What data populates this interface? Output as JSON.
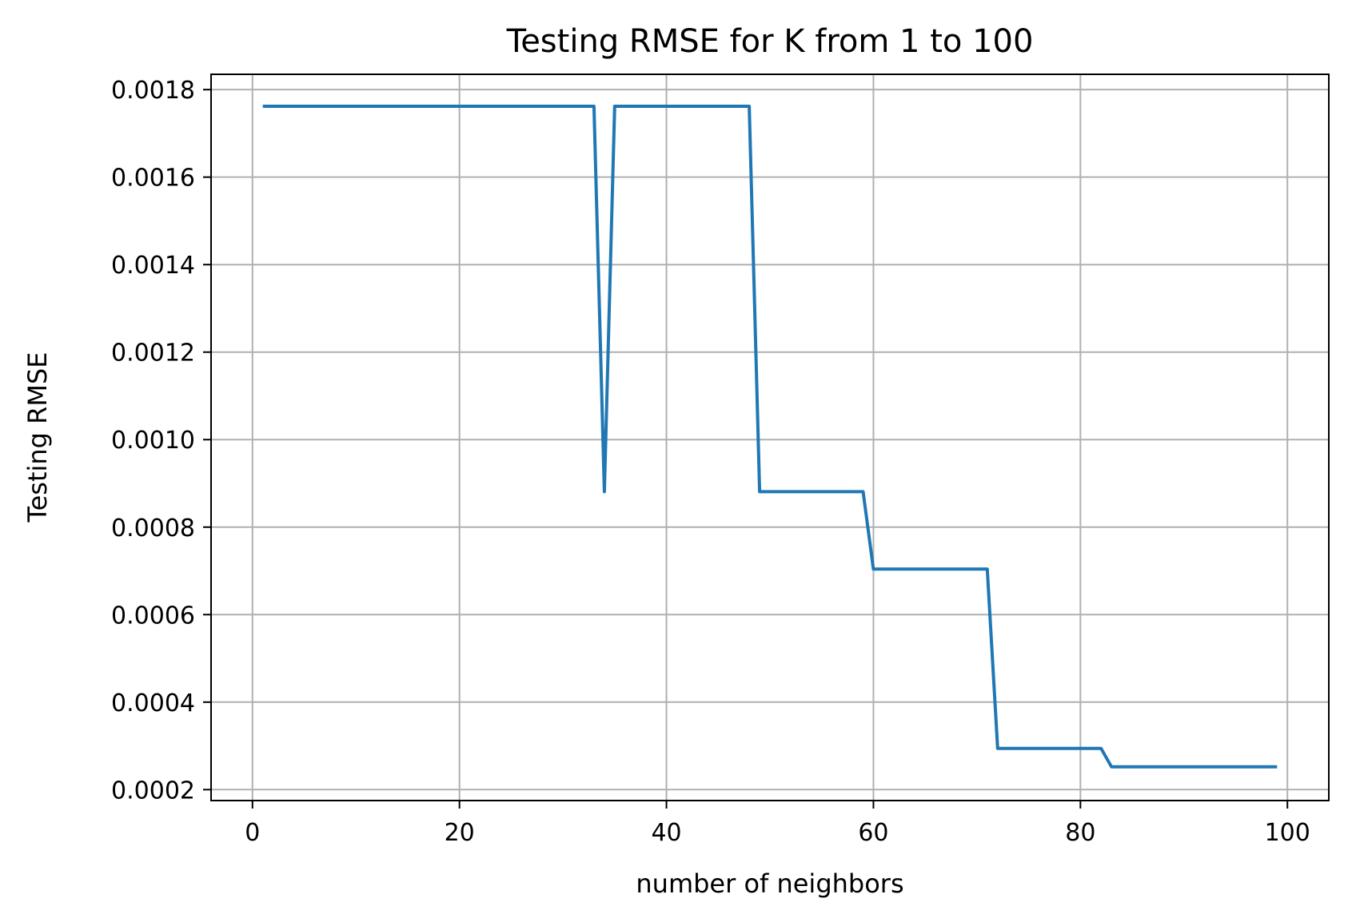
{
  "chart_data": {
    "type": "line",
    "title": "Testing RMSE for K from 1 to 100",
    "xlabel": "number of neighbors",
    "ylabel": "Testing RMSE",
    "xlim": [
      -4,
      104
    ],
    "ylim": [
      0.000175,
      0.001835
    ],
    "xticks": [
      0,
      20,
      40,
      60,
      80,
      100
    ],
    "xtick_labels": [
      "0",
      "20",
      "40",
      "60",
      "80",
      "100"
    ],
    "yticks": [
      0.0002,
      0.0004,
      0.0006,
      0.0008,
      0.001,
      0.0012,
      0.0014,
      0.0016,
      0.0018
    ],
    "ytick_labels": [
      "0.0002",
      "0.0004",
      "0.0006",
      "0.0008",
      "0.0010",
      "0.0012",
      "0.0014",
      "0.0016",
      "0.0018"
    ],
    "grid": true,
    "series": [
      {
        "color": "#1f77b4",
        "x": [
          1,
          33,
          34,
          35,
          48,
          49,
          59,
          60,
          71,
          72,
          82,
          83,
          99
        ],
        "y": [
          0.001762,
          0.001762,
          0.000881,
          0.001762,
          0.001762,
          0.000881,
          0.000881,
          0.000704,
          0.000704,
          0.000294,
          0.000294,
          0.000252,
          0.000252
        ]
      }
    ]
  }
}
